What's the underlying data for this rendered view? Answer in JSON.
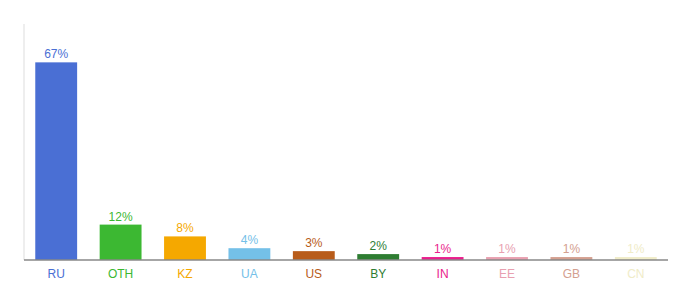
{
  "chart_data": {
    "type": "bar",
    "categories": [
      "RU",
      "OTH",
      "KZ",
      "UA",
      "US",
      "BY",
      "IN",
      "EE",
      "GB",
      "CN"
    ],
    "values": [
      67,
      12,
      8,
      4,
      3,
      2,
      1,
      1,
      1,
      1
    ],
    "value_labels": [
      "67%",
      "12%",
      "8%",
      "4%",
      "3%",
      "2%",
      "1%",
      "1%",
      "1%",
      "1%"
    ],
    "colors": [
      "#4a6fd4",
      "#3cb832",
      "#f5a800",
      "#74c0e8",
      "#b85c1a",
      "#2e7d32",
      "#e91e8c",
      "#e8a0b0",
      "#d4a090",
      "#f0ecc8"
    ],
    "ylim": [
      0,
      80
    ],
    "data_labels": true,
    "tick_labels": "x",
    "grid": false
  }
}
